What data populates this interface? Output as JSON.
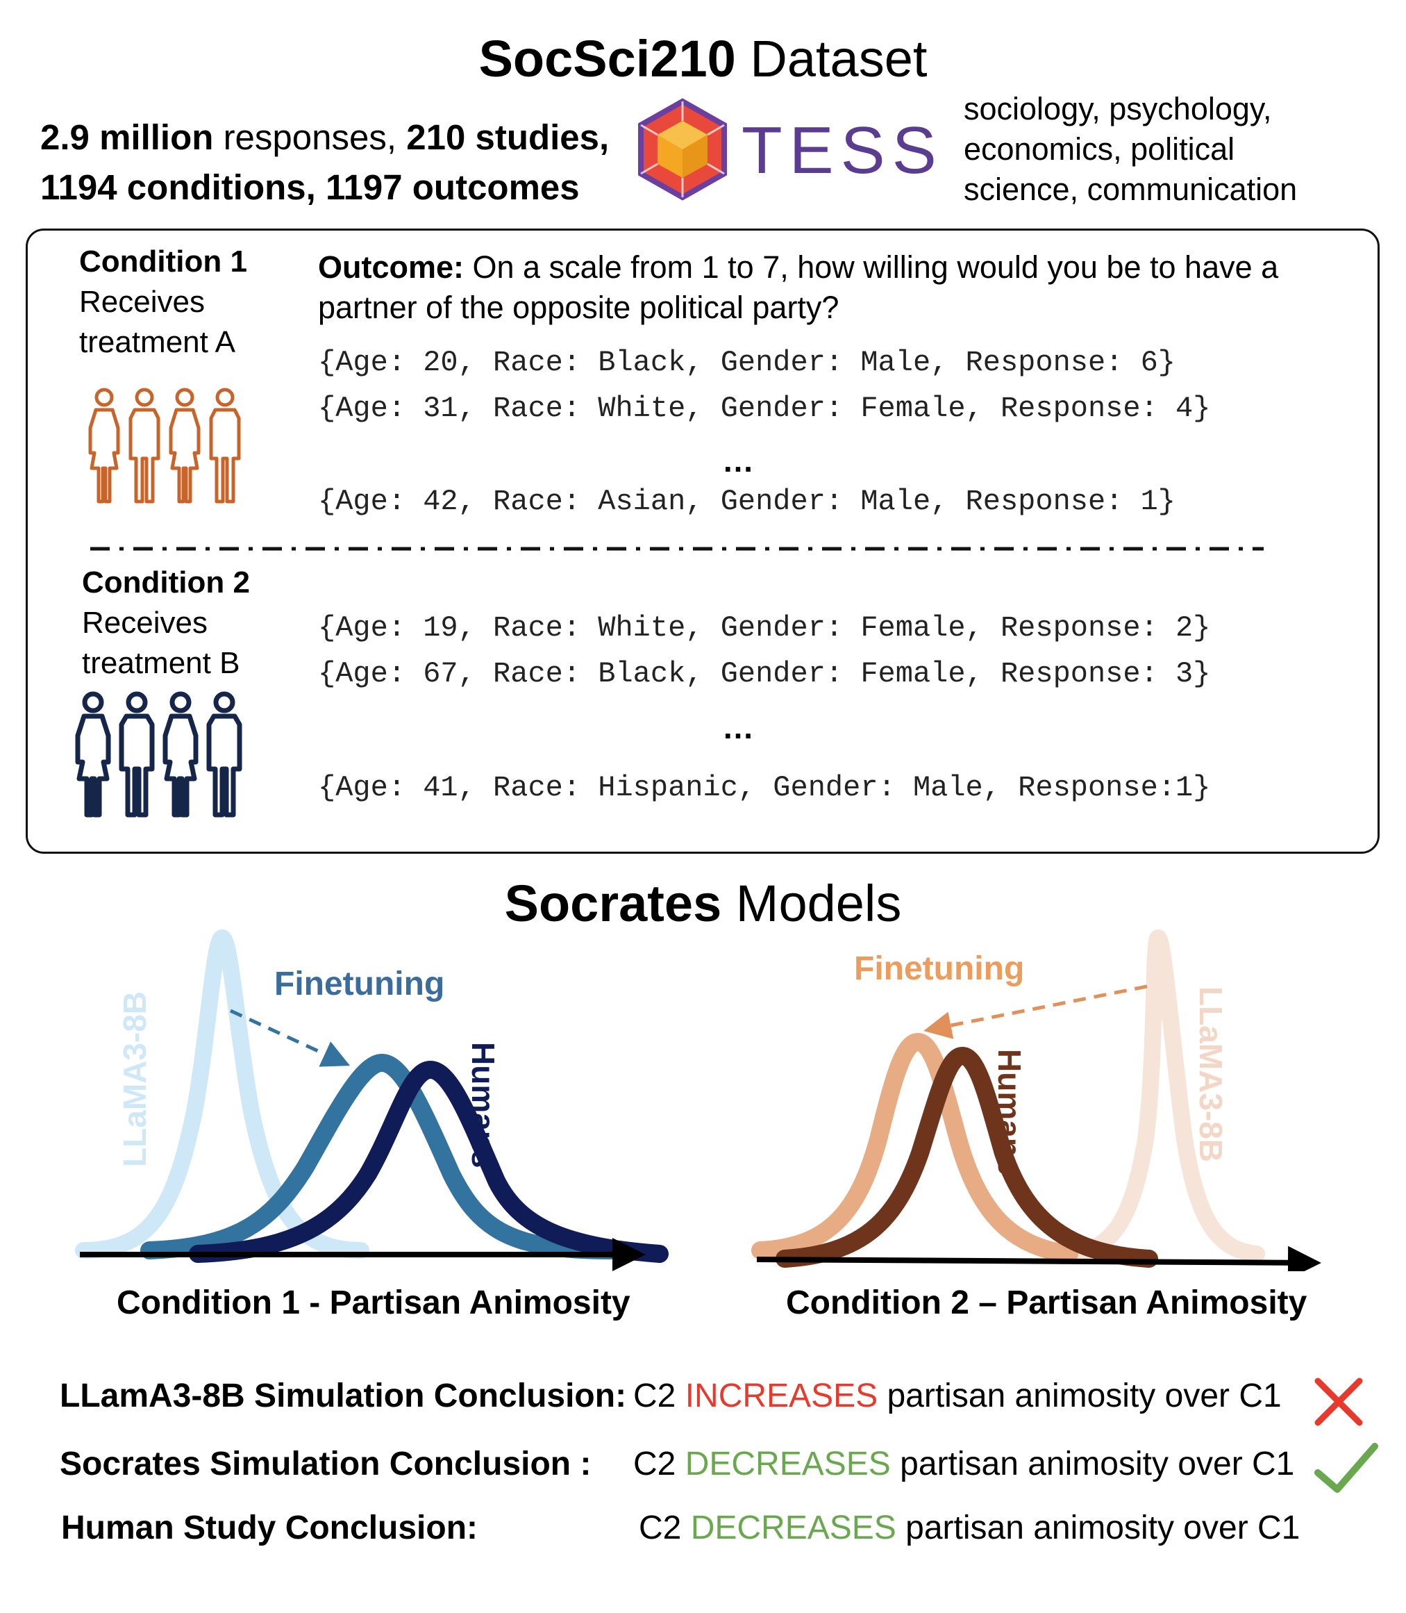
{
  "header": {
    "title_bold": "SocSci210",
    "title_rest": " Dataset"
  },
  "stats": {
    "line1_bold1": "2.9 million",
    "line1_text1": " responses, ",
    "line1_bold2": "210 studies,",
    "line2_bold1": "1194 conditions,",
    "line2_text": " ",
    "line2_bold2": "1197 outcomes"
  },
  "logo": {
    "text": "TESS",
    "icon": "tess-logo-icon"
  },
  "fields": {
    "line1": "sociology, psychology,",
    "line2": "economics, political",
    "line3": "science, communication"
  },
  "panel": {
    "outcome_label": "Outcome:",
    "outcome_text": " On a scale from 1 to 7, how willing would you be to have a partner of the opposite political party?",
    "ellipsis": "…",
    "condition1": {
      "title": "Condition 1",
      "line1": "Receives",
      "line2": "treatment A",
      "icon": "people-group-icon",
      "color": "#c8642a",
      "rows": [
        "{Age: 20, Race: Black, Gender: Male, Response: 6}",
        "{Age: 31, Race: White, Gender: Female, Response: 4}",
        "{Age: 42, Race: Asian, Gender: Male, Response: 1}"
      ]
    },
    "condition2": {
      "title": "Condition 2",
      "line1": "Receives",
      "line2": "treatment B",
      "icon": "people-group-icon",
      "color": "#15264a",
      "rows": [
        "{Age: 19, Race: White, Gender: Female, Response: 2}",
        "{Age: 67, Race: Black, Gender: Female, Response: 3}",
        "{Age: 41, Race: Hispanic, Gender: Male, Response:1}"
      ]
    }
  },
  "models": {
    "title_bold": "Socrates",
    "title_rest": " Models"
  },
  "plot1": {
    "finetune_label": "Finetuning",
    "base_label": "LLaMA3-8B",
    "humans_label": "Humans",
    "caption": "Condition 1 - Partisan Animosity",
    "colors": {
      "base": "#cfe8f7",
      "finetune": "#33739f",
      "humans": "#101c57",
      "label": "#3b6c9e"
    }
  },
  "plot2": {
    "finetune_label": "Finetuning",
    "base_label": "LLaMA3-8B",
    "humans_label": "Humans",
    "caption": "Condition 2 – Partisan Animosity",
    "colors": {
      "base": "#f7e4d8",
      "finetune": "#e7ac83",
      "humans": "#6e341c",
      "label": "#ec9c5c"
    }
  },
  "conclusions": [
    {
      "label": "LLamA3-8B Simulation Conclusion:",
      "pre": "C2 ",
      "verb": "INCREASES",
      "post": " partisan animosity over C1",
      "verb_color": "red",
      "mark": "cross-icon"
    },
    {
      "label": "Socrates Simulation Conclusion :",
      "pre": "C2 ",
      "verb": "DECREASES",
      "post": " partisan animosity over C1",
      "verb_color": "green",
      "mark": "check-icon"
    },
    {
      "label": "Human Study Conclusion:",
      "pre": "C2 ",
      "verb": "DECREASES",
      "post": " partisan animosity over C1",
      "verb_color": "green",
      "mark": ""
    }
  ]
}
